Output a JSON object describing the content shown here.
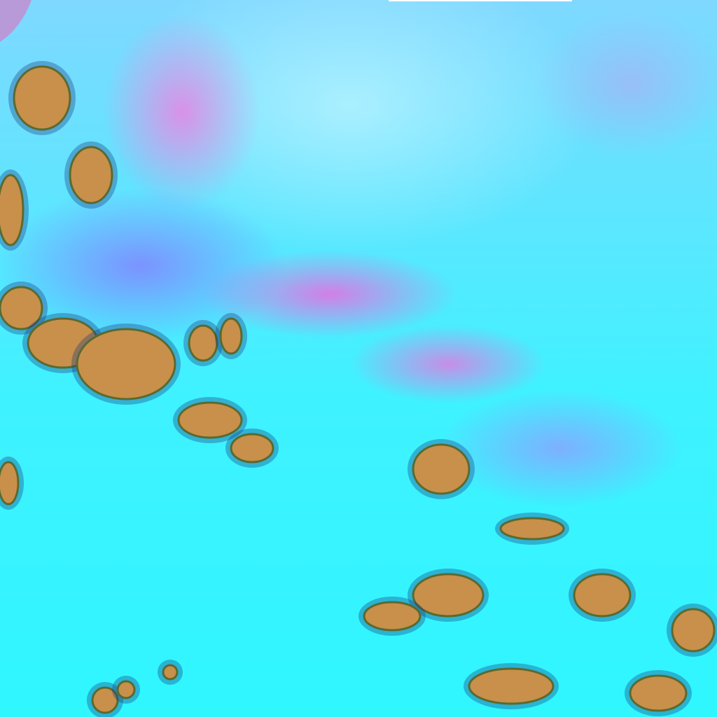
{
  "image": {
    "kind": "false-color satellite imagery",
    "colors": {
      "cloud": "#33f5ff",
      "plume": "#ff66dd",
      "haze": "#9a8cff",
      "land": "#c8904a",
      "shadow": "#1a3a80"
    }
  }
}
